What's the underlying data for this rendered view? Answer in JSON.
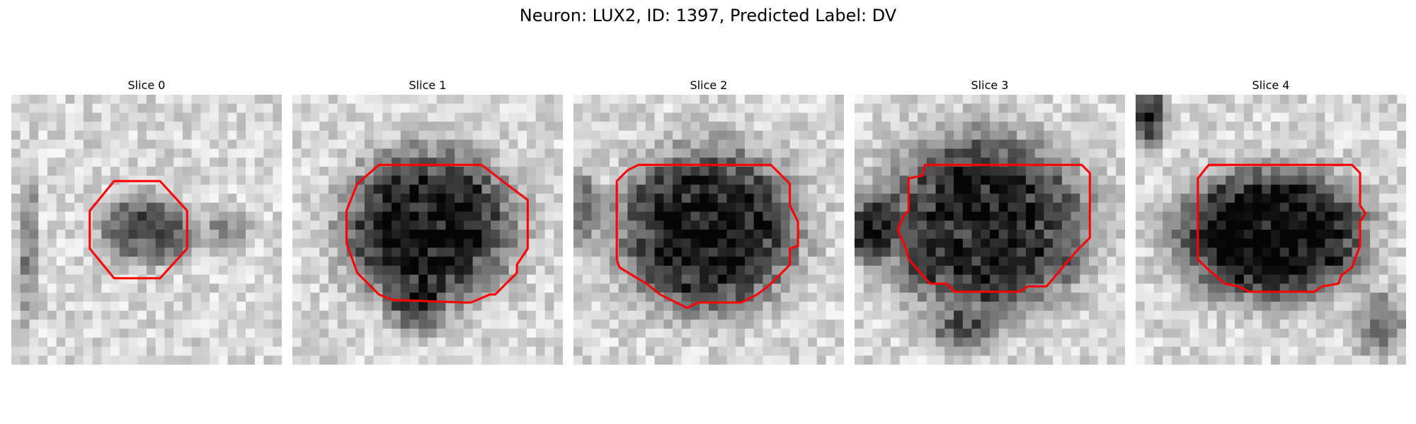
{
  "figure": {
    "title": "Neuron: LUX2, ID: 1397, Predicted Label: DV",
    "contour_color": "#ff0000",
    "colormap": "grayscale"
  },
  "panels": [
    {
      "title": "Slice 0",
      "contour": [
        [
          0.38,
          0.32
        ],
        [
          0.55,
          0.32
        ],
        [
          0.65,
          0.43
        ],
        [
          0.65,
          0.57
        ],
        [
          0.55,
          0.68
        ],
        [
          0.38,
          0.68
        ],
        [
          0.29,
          0.57
        ],
        [
          0.29,
          0.43
        ]
      ]
    },
    {
      "title": "Slice 1",
      "contour": [
        [
          0.32,
          0.26
        ],
        [
          0.7,
          0.26
        ],
        [
          0.79,
          0.33
        ],
        [
          0.87,
          0.39
        ],
        [
          0.87,
          0.57
        ],
        [
          0.83,
          0.63
        ],
        [
          0.83,
          0.66
        ],
        [
          0.75,
          0.74
        ],
        [
          0.73,
          0.74
        ],
        [
          0.66,
          0.77
        ],
        [
          0.64,
          0.77
        ],
        [
          0.37,
          0.76
        ],
        [
          0.32,
          0.74
        ],
        [
          0.24,
          0.66
        ],
        [
          0.2,
          0.55
        ],
        [
          0.2,
          0.43
        ],
        [
          0.24,
          0.33
        ]
      ]
    },
    {
      "title": "Slice 2",
      "contour": [
        [
          0.24,
          0.26
        ],
        [
          0.73,
          0.26
        ],
        [
          0.8,
          0.33
        ],
        [
          0.8,
          0.41
        ],
        [
          0.81,
          0.43
        ],
        [
          0.83,
          0.47
        ],
        [
          0.83,
          0.56
        ],
        [
          0.8,
          0.57
        ],
        [
          0.8,
          0.63
        ],
        [
          0.73,
          0.7
        ],
        [
          0.68,
          0.74
        ],
        [
          0.62,
          0.77
        ],
        [
          0.55,
          0.77
        ],
        [
          0.46,
          0.77
        ],
        [
          0.42,
          0.79
        ],
        [
          0.36,
          0.76
        ],
        [
          0.32,
          0.74
        ],
        [
          0.27,
          0.7
        ],
        [
          0.17,
          0.64
        ],
        [
          0.16,
          0.61
        ],
        [
          0.16,
          0.32
        ],
        [
          0.2,
          0.28
        ]
      ]
    },
    {
      "title": "Slice 3",
      "contour": [
        [
          0.26,
          0.26
        ],
        [
          0.84,
          0.26
        ],
        [
          0.87,
          0.29
        ],
        [
          0.87,
          0.53
        ],
        [
          0.82,
          0.58
        ],
        [
          0.71,
          0.71
        ],
        [
          0.64,
          0.71
        ],
        [
          0.61,
          0.73
        ],
        [
          0.37,
          0.73
        ],
        [
          0.34,
          0.7
        ],
        [
          0.28,
          0.7
        ],
        [
          0.2,
          0.61
        ],
        [
          0.19,
          0.57
        ],
        [
          0.16,
          0.5
        ],
        [
          0.18,
          0.45
        ],
        [
          0.2,
          0.43
        ],
        [
          0.2,
          0.31
        ],
        [
          0.25,
          0.3
        ]
      ]
    },
    {
      "title": "Slice 4",
      "contour": [
        [
          0.27,
          0.26
        ],
        [
          0.8,
          0.26
        ],
        [
          0.83,
          0.29
        ],
        [
          0.83,
          0.41
        ],
        [
          0.85,
          0.44
        ],
        [
          0.83,
          0.47
        ],
        [
          0.83,
          0.56
        ],
        [
          0.81,
          0.61
        ],
        [
          0.8,
          0.64
        ],
        [
          0.76,
          0.67
        ],
        [
          0.75,
          0.7
        ],
        [
          0.69,
          0.71
        ],
        [
          0.66,
          0.73
        ],
        [
          0.42,
          0.73
        ],
        [
          0.38,
          0.71
        ],
        [
          0.33,
          0.7
        ],
        [
          0.26,
          0.64
        ],
        [
          0.23,
          0.61
        ],
        [
          0.23,
          0.31
        ]
      ]
    }
  ]
}
